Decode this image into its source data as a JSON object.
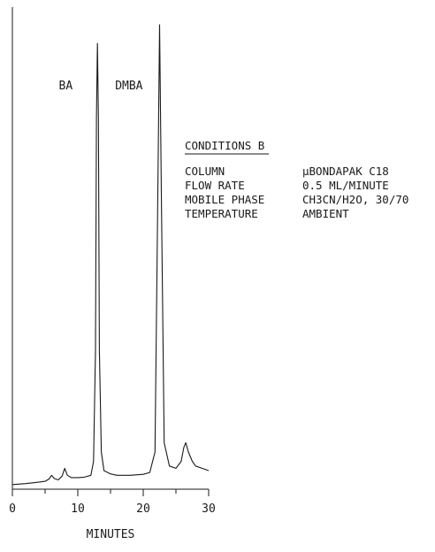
{
  "chart_data": {
    "type": "line",
    "title": "",
    "xlabel": "MINUTES",
    "ylabel": "",
    "xlim": [
      0,
      30
    ],
    "x_ticks": [
      0,
      10,
      20,
      30
    ],
    "x_tick_labels": [
      "0",
      "10",
      "20",
      "30"
    ],
    "grid": false,
    "peaks": [
      {
        "label": "BA",
        "retention_min": 13.0
      },
      {
        "label": "DMBA",
        "retention_min": 22.5
      }
    ],
    "minor_peaks": [
      {
        "retention_min": 6.0
      },
      {
        "retention_min": 8.0
      },
      {
        "retention_min": 26.5
      }
    ],
    "series": [
      {
        "x": [
          0,
          2,
          4,
          5,
          5.6,
          6.0,
          6.4,
          7,
          7.6,
          8.0,
          8.4,
          9,
          10,
          11,
          12,
          12.4,
          12.7,
          12.85,
          13.0,
          13.15,
          13.3,
          13.6,
          14,
          15,
          16,
          18,
          20,
          21,
          21.8,
          22.2,
          22.5,
          22.8,
          23.2,
          24,
          25,
          25.8,
          26.2,
          26.5,
          26.9,
          27.5,
          28,
          29,
          30
        ],
        "y": [
          0.01,
          0.012,
          0.015,
          0.017,
          0.022,
          0.03,
          0.023,
          0.02,
          0.028,
          0.045,
          0.03,
          0.025,
          0.025,
          0.026,
          0.03,
          0.06,
          0.3,
          0.8,
          0.96,
          0.8,
          0.3,
          0.08,
          0.04,
          0.033,
          0.03,
          0.03,
          0.032,
          0.036,
          0.08,
          0.6,
          1.0,
          0.6,
          0.1,
          0.05,
          0.045,
          0.06,
          0.09,
          0.1,
          0.08,
          0.06,
          0.05,
          0.045,
          0.04
        ]
      }
    ],
    "conditions": {
      "heading": "CONDITIONS B",
      "rows": [
        {
          "label": "COLUMN",
          "value": "µBONDAPAK C18"
        },
        {
          "label": "FLOW RATE",
          "value": "0.5 ML/MINUTE"
        },
        {
          "label": "MOBILE PHASE",
          "value": "CH3CN/H2O, 30/70"
        },
        {
          "label": "TEMPERATURE",
          "value": "AMBIENT"
        }
      ]
    }
  }
}
